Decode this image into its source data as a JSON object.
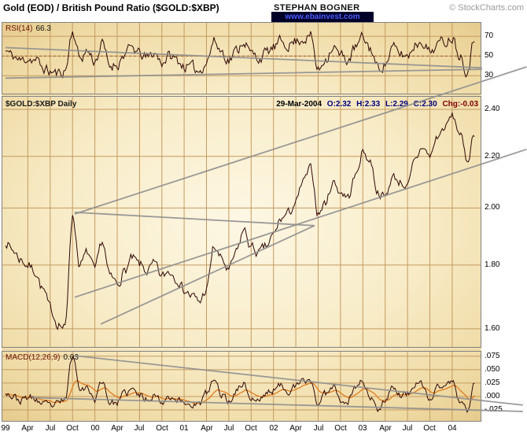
{
  "header": {
    "title": "Gold (EOD) / British Pound Ratio ($GOLD:$XBP)",
    "author": "STEPHAN BOGNER",
    "website": "www.ebainvest.com",
    "copyright": "© StockCharts.com"
  },
  "panels": {
    "rsi": {
      "name": "RSI(14)",
      "value": "66.3"
    },
    "price": {
      "name": "$GOLD:$XBP Daily",
      "date": "29-Mar-2004",
      "open": "O:2.32",
      "high": "H:2.33",
      "low": "L:2.29",
      "close": "C:2.30",
      "change": "Chg:-0.03"
    },
    "macd": {
      "name": "MACD(12,26,9)",
      "value": "0.03"
    }
  },
  "colors": {
    "series": "#2e0606",
    "signal": "#e07414",
    "trend": "#8f8f8f",
    "grid": "#c49a5f",
    "midline": "#a05a2c",
    "panel_border": "#828282",
    "ohlc_blue": "#000080",
    "change_red": "#800000"
  },
  "x_axis": {
    "start": "Jan-1999",
    "months_span": 63.5,
    "labels": [
      "99",
      "Apr",
      "Jul",
      "Oct",
      "00",
      "Apr",
      "Jul",
      "Oct",
      "01",
      "Apr",
      "Jul",
      "Oct",
      "02",
      "Apr",
      "Jul",
      "Oct",
      "03",
      "Apr",
      "Jul",
      "Oct",
      "04"
    ],
    "tick_months": [
      0,
      3,
      6,
      9,
      12,
      15,
      18,
      21,
      24,
      27,
      30,
      33,
      36,
      39,
      42,
      45,
      48,
      51,
      54,
      57,
      60
    ]
  },
  "chart_data": [
    {
      "id": "rsi",
      "type": "line",
      "title": "RSI(14)",
      "last_value": 66.3,
      "scale": "linear",
      "ylim": [
        11,
        84.5
      ],
      "ticks": [
        70,
        50,
        30
      ],
      "tick_labels": [
        "70",
        "50",
        "30"
      ],
      "midline": 50,
      "x_unit": "months since Jan-1999, one anchor per month",
      "anchors": [
        55,
        50,
        45,
        48,
        46,
        38,
        34,
        32,
        35,
        75,
        48,
        55,
        45,
        62,
        40,
        42,
        52,
        58,
        52,
        48,
        53,
        44,
        50,
        46,
        40,
        38,
        35,
        45,
        65,
        55,
        46,
        55,
        66,
        52,
        48,
        53,
        58,
        64,
        62,
        65,
        68,
        70,
        35,
        48,
        60,
        50,
        46,
        58,
        68,
        58,
        38,
        42,
        58,
        52,
        50,
        62,
        66,
        54,
        62,
        65,
        70,
        52,
        36,
        66.3
      ],
      "noise": 10,
      "seed": 11,
      "trendlines": [
        {
          "from": [
            0,
            58.5
          ],
          "to": [
            64,
            38.0
          ]
        },
        {
          "from": [
            0,
            27.5
          ],
          "to": [
            64,
            36.5
          ]
        }
      ]
    },
    {
      "id": "price",
      "type": "line",
      "title": "$GOLD:$XBP Daily (Gold / British Pound ratio)",
      "last_close": 2.3,
      "ohlc": {
        "open": 2.32,
        "high": 2.33,
        "low": 2.29,
        "close": 2.3,
        "change": -0.03
      },
      "scale": "log",
      "ylim": [
        1.545,
        2.46
      ],
      "ticks": [
        2.4,
        2.2,
        2.0,
        1.8,
        1.6
      ],
      "tick_labels": [
        "2.40",
        "2.20",
        "2.00",
        "1.80",
        "1.60"
      ],
      "x_unit": "months since Jan-1999, one anchor per month",
      "anchors": [
        1.88,
        1.85,
        1.82,
        1.8,
        1.78,
        1.72,
        1.66,
        1.62,
        1.6,
        1.97,
        1.8,
        1.84,
        1.78,
        1.88,
        1.76,
        1.74,
        1.78,
        1.82,
        1.8,
        1.78,
        1.8,
        1.76,
        1.78,
        1.76,
        1.72,
        1.7,
        1.68,
        1.72,
        1.86,
        1.82,
        1.78,
        1.84,
        1.92,
        1.86,
        1.84,
        1.86,
        1.9,
        1.96,
        1.98,
        2.02,
        2.1,
        2.15,
        1.98,
        2.02,
        2.1,
        2.06,
        2.04,
        2.12,
        2.22,
        2.18,
        2.06,
        2.04,
        2.12,
        2.1,
        2.08,
        2.18,
        2.24,
        2.2,
        2.28,
        2.32,
        2.37,
        2.3,
        2.18,
        2.3
      ],
      "noise": 0.03,
      "seed": 7,
      "trendlines": [
        {
          "from": [
            9.3,
            1.978
          ],
          "to": [
            70.0,
            2.596
          ]
        },
        {
          "from": [
            9.3,
            1.696
          ],
          "to": [
            70.0,
            2.229
          ]
        },
        {
          "from": [
            9.3,
            1.984
          ],
          "to": [
            41.5,
            1.936
          ]
        },
        {
          "from": [
            12.8,
            1.614
          ],
          "to": [
            41.5,
            1.936
          ]
        }
      ]
    },
    {
      "id": "macd",
      "type": "line",
      "title": "MACD(12,26,9)",
      "last_value": 0.03,
      "scale": "linear",
      "ylim": [
        -0.047,
        0.085
      ],
      "ticks": [
        0.075,
        0.05,
        0.025,
        0,
        -0.025
      ],
      "tick_labels": [
        ".075",
        ".050",
        ".025",
        ".000",
        "-.025"
      ],
      "has_signal_line": true,
      "x_unit": "months since Jan-1999, one anchor per month",
      "anchors": [
        0.01,
        0.0,
        -0.008,
        -0.002,
        -0.005,
        -0.015,
        -0.018,
        -0.015,
        -0.005,
        0.075,
        0.02,
        0.015,
        -0.005,
        0.03,
        -0.01,
        -0.012,
        0.005,
        0.012,
        0.002,
        -0.005,
        0.004,
        -0.01,
        0.002,
        -0.006,
        -0.012,
        -0.014,
        -0.015,
        0.005,
        0.03,
        0.005,
        -0.01,
        0.012,
        0.025,
        -0.005,
        -0.008,
        0.006,
        0.012,
        0.02,
        0.012,
        0.018,
        0.028,
        0.03,
        -0.015,
        0.005,
        0.022,
        -0.005,
        -0.008,
        0.018,
        0.03,
        -0.005,
        -0.022,
        -0.005,
        0.02,
        0.002,
        0.005,
        0.022,
        0.02,
        -0.008,
        0.018,
        0.02,
        0.028,
        -0.01,
        -0.025,
        0.03
      ],
      "noise": 0.012,
      "seed": 23,
      "trendlines": [
        {
          "from": [
            9.3,
            0.076
          ],
          "to": [
            69.5,
            -0.016
          ]
        },
        {
          "from": [
            3.5,
            -0.002
          ],
          "to": [
            69.5,
            -0.028
          ]
        }
      ]
    }
  ]
}
